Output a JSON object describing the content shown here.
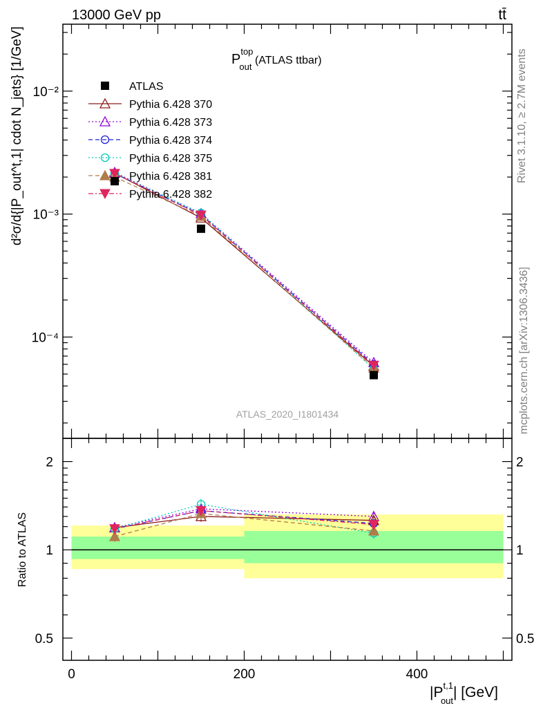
{
  "header": {
    "left": "13000 GeV pp",
    "right": "tt̄"
  },
  "side_labels": {
    "rivet": "Rivet 3.1.10, ≥ 2.7M events",
    "mcplots": "mcplots.cern.ch [arXiv:1306.3436]"
  },
  "chart_data": [
    {
      "type": "line",
      "panel": "main",
      "title": "P_out^top (ATLAS ttbar)",
      "title_main": "P",
      "title_sup": "top",
      "title_sub": "out",
      "title_rest": " (ATLAS ttbar)",
      "watermark": "ATLAS_2020_I1801434",
      "ylabel": "d²σ/d{|P_out^t,1| cdot N_jets} [1/GeV]",
      "yscale": "log",
      "ylim": [
        1.5e-05,
        0.035
      ],
      "xlim": [
        -10,
        510
      ],
      "y_ticklabels": [
        "10⁻²",
        "10⁻³",
        "10⁻⁴"
      ],
      "x": [
        50,
        150,
        350
      ],
      "series": [
        {
          "name": "ATLAS",
          "color": "#000000",
          "marker": "square",
          "dash": "none",
          "values": [
            0.00185,
            0.00076,
            4.9e-05
          ]
        },
        {
          "name": "Pythia 6.428 370",
          "color": "#8b1a1a",
          "marker": "triangle-open",
          "dash": "solid",
          "values": [
            0.00215,
            0.00093,
            5.8e-05
          ]
        },
        {
          "name": "Pythia 6.428 373",
          "color": "#9400d3",
          "marker": "triangle-open",
          "dash": "dotted",
          "values": [
            0.00218,
            0.00101,
            6.2e-05
          ]
        },
        {
          "name": "Pythia 6.428 374",
          "color": "#1f1fd8",
          "marker": "circle-open",
          "dash": "dashed",
          "values": [
            0.00214,
            0.00099,
            6e-05
          ]
        },
        {
          "name": "Pythia 6.428 375",
          "color": "#00ccbb",
          "marker": "circle-open",
          "dash": "dotted",
          "values": [
            0.00215,
            0.00102,
            5.5e-05
          ]
        },
        {
          "name": "Pythia 6.428 381",
          "color": "#b07c4a",
          "marker": "triangle",
          "dash": "dashed",
          "values": [
            0.002,
            0.00096,
            5.6e-05
          ]
        },
        {
          "name": "Pythia 6.428 382",
          "color": "#e0245e",
          "marker": "triangle-down",
          "dash": "dashdot",
          "values": [
            0.00214,
            0.00098,
            5.9e-05
          ]
        }
      ]
    },
    {
      "type": "line",
      "panel": "ratio",
      "ylabel": "Ratio to ATLAS",
      "xlabel": "|P_out^t,1| [GeV]",
      "xlabel_main": "|P",
      "xlabel_sup": "t,1",
      "xlabel_sub": "out",
      "xlabel_rest": "| [GeV]",
      "yscale": "log",
      "ylim": [
        0.42,
        2.4
      ],
      "y_ticks": [
        0.5,
        1,
        2
      ],
      "y_ticklabels": [
        "0.5",
        "1",
        "2"
      ],
      "x_ticks": [
        0,
        200,
        400
      ],
      "x_ticklabels": [
        "0",
        "200",
        "400"
      ],
      "bands": [
        {
          "x0": 0,
          "x1": 200,
          "yellow": [
            0.86,
            1.21
          ],
          "green": [
            0.93,
            1.11
          ]
        },
        {
          "x0": 200,
          "x1": 500,
          "yellow": [
            0.8,
            1.32
          ],
          "green": [
            0.9,
            1.16
          ]
        }
      ],
      "x": [
        50,
        150,
        350
      ],
      "series": [
        {
          "name": "Pythia 6.428 370",
          "values": [
            1.19,
            1.3,
            1.26
          ]
        },
        {
          "name": "Pythia 6.428 373",
          "values": [
            1.19,
            1.38,
            1.3
          ]
        },
        {
          "name": "Pythia 6.428 374",
          "values": [
            1.18,
            1.36,
            1.23
          ]
        },
        {
          "name": "Pythia 6.428 375",
          "values": [
            1.18,
            1.43,
            1.14
          ]
        },
        {
          "name": "Pythia 6.428 381",
          "values": [
            1.11,
            1.33,
            1.16
          ]
        },
        {
          "name": "Pythia 6.428 382",
          "values": [
            1.18,
            1.36,
            1.22
          ]
        }
      ]
    }
  ]
}
